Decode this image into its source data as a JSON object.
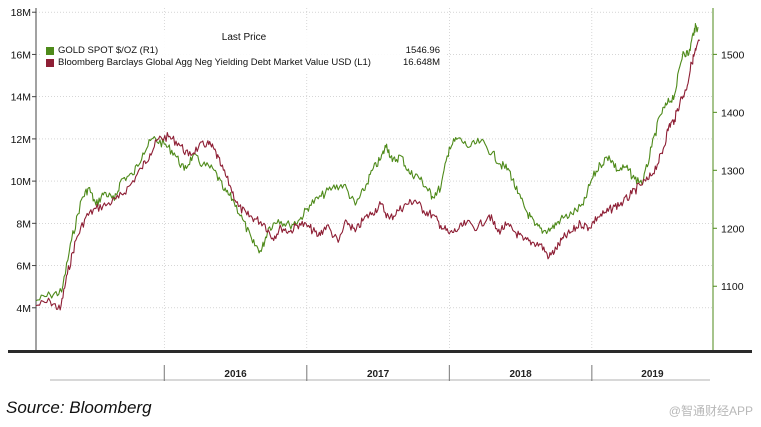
{
  "chart_data": {
    "type": "line",
    "legend": {
      "title": "Last Price",
      "placement": "top-left"
    },
    "x_axis": {
      "labels": [
        "2016",
        "2017",
        "2018",
        "2019"
      ],
      "range": [
        2015.1,
        2019.85
      ],
      "year_boundaries": [
        2016,
        2017,
        2018,
        2019
      ]
    },
    "y_left": {
      "ticks": [
        4,
        6,
        8,
        10,
        12,
        14,
        16,
        18
      ],
      "tick_labels": [
        "4M",
        "6M",
        "8M",
        "10M",
        "12M",
        "14M",
        "16M",
        "18M"
      ],
      "range": [
        2.0,
        18.2
      ]
    },
    "y_right": {
      "ticks": [
        1100,
        1200,
        1300,
        1400,
        1500
      ],
      "tick_labels": [
        "1100",
        "1200",
        "1300",
        "1400",
        "1500"
      ],
      "range": [
        990,
        1580
      ]
    },
    "series": [
      {
        "name": "GOLD SPOT $/OZ  (R1)",
        "last_value": "1546.96",
        "axis": "right",
        "color": "#4e8a1a",
        "points": [
          [
            2015.1,
            1075
          ],
          [
            2015.2,
            1085
          ],
          [
            2015.28,
            1090
          ],
          [
            2015.35,
            1180
          ],
          [
            2015.42,
            1250
          ],
          [
            2015.47,
            1270
          ],
          [
            2015.52,
            1240
          ],
          [
            2015.58,
            1262
          ],
          [
            2015.65,
            1248
          ],
          [
            2015.7,
            1285
          ],
          [
            2015.78,
            1292
          ],
          [
            2015.85,
            1330
          ],
          [
            2015.92,
            1355
          ],
          [
            2016.0,
            1345
          ],
          [
            2016.07,
            1330
          ],
          [
            2016.14,
            1300
          ],
          [
            2016.2,
            1325
          ],
          [
            2016.27,
            1310
          ],
          [
            2016.35,
            1300
          ],
          [
            2016.42,
            1265
          ],
          [
            2016.48,
            1250
          ],
          [
            2016.55,
            1215
          ],
          [
            2016.62,
            1175
          ],
          [
            2016.68,
            1160
          ],
          [
            2016.73,
            1200
          ],
          [
            2016.8,
            1215
          ],
          [
            2016.88,
            1205
          ],
          [
            2016.95,
            1215
          ],
          [
            2017.02,
            1240
          ],
          [
            2017.1,
            1255
          ],
          [
            2017.18,
            1270
          ],
          [
            2017.26,
            1275
          ],
          [
            2017.34,
            1240
          ],
          [
            2017.4,
            1265
          ],
          [
            2017.46,
            1300
          ],
          [
            2017.52,
            1320
          ],
          [
            2017.56,
            1345
          ],
          [
            2017.6,
            1315
          ],
          [
            2017.66,
            1325
          ],
          [
            2017.72,
            1295
          ],
          [
            2017.78,
            1290
          ],
          [
            2017.84,
            1270
          ],
          [
            2017.88,
            1255
          ],
          [
            2017.94,
            1270
          ],
          [
            2018.0,
            1340
          ],
          [
            2018.06,
            1355
          ],
          [
            2018.14,
            1340
          ],
          [
            2018.22,
            1350
          ],
          [
            2018.3,
            1330
          ],
          [
            2018.36,
            1310
          ],
          [
            2018.42,
            1300
          ],
          [
            2018.48,
            1260
          ],
          [
            2018.54,
            1230
          ],
          [
            2018.6,
            1205
          ],
          [
            2018.66,
            1195
          ],
          [
            2018.72,
            1200
          ],
          [
            2018.78,
            1215
          ],
          [
            2018.86,
            1225
          ],
          [
            2018.94,
            1240
          ],
          [
            2019.0,
            1285
          ],
          [
            2019.06,
            1310
          ],
          [
            2019.12,
            1325
          ],
          [
            2019.18,
            1300
          ],
          [
            2019.24,
            1305
          ],
          [
            2019.3,
            1285
          ],
          [
            2019.36,
            1280
          ],
          [
            2019.42,
            1340
          ],
          [
            2019.48,
            1395
          ],
          [
            2019.53,
            1415
          ],
          [
            2019.58,
            1430
          ],
          [
            2019.64,
            1505
          ],
          [
            2019.68,
            1500
          ],
          [
            2019.72,
            1545
          ],
          [
            2019.745,
            1547
          ]
        ]
      },
      {
        "name": "Bloomberg Barclays Global Agg Neg Yielding Debt Market Value USD  (L1)",
        "last_value": "16.648M",
        "axis": "left",
        "color": "#8e1f35",
        "points": [
          [
            2015.1,
            4.1
          ],
          [
            2015.2,
            4.3
          ],
          [
            2015.27,
            3.9
          ],
          [
            2015.32,
            5.6
          ],
          [
            2015.38,
            7.2
          ],
          [
            2015.45,
            8.3
          ],
          [
            2015.52,
            8.7
          ],
          [
            2015.6,
            8.9
          ],
          [
            2015.68,
            9.2
          ],
          [
            2015.76,
            9.8
          ],
          [
            2015.84,
            10.6
          ],
          [
            2015.9,
            11.3
          ],
          [
            2015.96,
            12.0
          ],
          [
            2016.03,
            12.1
          ],
          [
            2016.1,
            11.8
          ],
          [
            2016.17,
            11.2
          ],
          [
            2016.24,
            11.6
          ],
          [
            2016.3,
            11.8
          ],
          [
            2016.35,
            11.5
          ],
          [
            2016.4,
            10.7
          ],
          [
            2016.46,
            9.8
          ],
          [
            2016.52,
            8.8
          ],
          [
            2016.58,
            8.4
          ],
          [
            2016.64,
            8.2
          ],
          [
            2016.7,
            8.0
          ],
          [
            2016.76,
            7.3
          ],
          [
            2016.82,
            7.8
          ],
          [
            2016.88,
            7.6
          ],
          [
            2016.95,
            8.0
          ],
          [
            2017.02,
            7.8
          ],
          [
            2017.08,
            7.4
          ],
          [
            2017.14,
            7.9
          ],
          [
            2017.22,
            7.1
          ],
          [
            2017.28,
            8.1
          ],
          [
            2017.34,
            7.6
          ],
          [
            2017.4,
            8.2
          ],
          [
            2017.46,
            8.5
          ],
          [
            2017.52,
            8.9
          ],
          [
            2017.58,
            8.2
          ],
          [
            2017.64,
            8.6
          ],
          [
            2017.7,
            8.9
          ],
          [
            2017.76,
            9.1
          ],
          [
            2017.82,
            8.6
          ],
          [
            2017.88,
            8.4
          ],
          [
            2017.94,
            7.9
          ],
          [
            2018.0,
            7.5
          ],
          [
            2018.06,
            7.7
          ],
          [
            2018.12,
            8.0
          ],
          [
            2018.2,
            7.8
          ],
          [
            2018.28,
            8.4
          ],
          [
            2018.34,
            7.6
          ],
          [
            2018.4,
            7.9
          ],
          [
            2018.46,
            7.6
          ],
          [
            2018.52,
            7.2
          ],
          [
            2018.58,
            7.1
          ],
          [
            2018.64,
            7.0
          ],
          [
            2018.7,
            6.4
          ],
          [
            2018.75,
            6.8
          ],
          [
            2018.8,
            7.3
          ],
          [
            2018.86,
            7.6
          ],
          [
            2018.92,
            8.0
          ],
          [
            2018.98,
            7.8
          ],
          [
            2019.04,
            8.3
          ],
          [
            2019.1,
            8.5
          ],
          [
            2019.16,
            8.8
          ],
          [
            2019.22,
            9.0
          ],
          [
            2019.28,
            9.4
          ],
          [
            2019.34,
            9.8
          ],
          [
            2019.4,
            10.1
          ],
          [
            2019.46,
            10.8
          ],
          [
            2019.5,
            11.5
          ],
          [
            2019.54,
            12.6
          ],
          [
            2019.58,
            12.9
          ],
          [
            2019.62,
            13.8
          ],
          [
            2019.66,
            14.3
          ],
          [
            2019.7,
            15.6
          ],
          [
            2019.73,
            16.2
          ],
          [
            2019.755,
            16.648
          ]
        ]
      }
    ]
  },
  "footer": {
    "source": "Source: Bloomberg",
    "watermark": "@智通财经APP"
  }
}
